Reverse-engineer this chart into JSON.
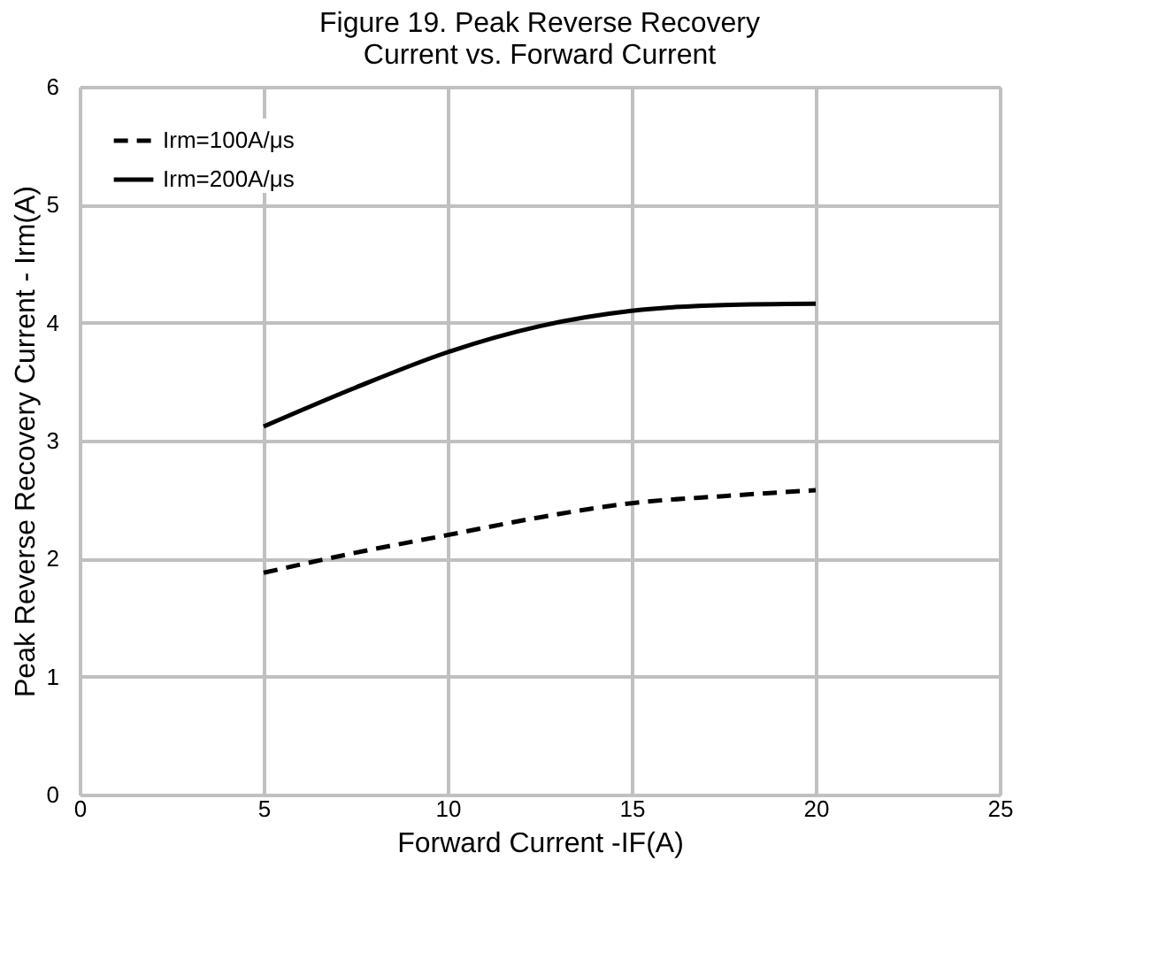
{
  "chart_data": {
    "type": "line",
    "title": [
      "Figure 19. Peak Reverse Recovery",
      "Current vs. Forward Current"
    ],
    "xlabel": "Forward Current -IF(A)",
    "ylabel": "Peak Reverse Recovery Current - Irm(A)",
    "x": [
      5,
      7.5,
      10,
      12.5,
      15,
      17.5,
      20
    ],
    "series": [
      {
        "name": "Irm=100A/μs",
        "color": "#000000",
        "line_style": "dashed",
        "values": [
          1.88,
          2.05,
          2.2,
          2.35,
          2.47,
          2.53,
          2.58
        ]
      },
      {
        "name": "Irm=200A/μs",
        "color": "#000000",
        "line_style": "solid",
        "values": [
          3.12,
          3.45,
          3.75,
          3.97,
          4.1,
          4.15,
          4.16
        ]
      }
    ],
    "xlim": [
      0,
      25
    ],
    "xticks": [
      0,
      5,
      10,
      15,
      20,
      25
    ],
    "ylim": [
      0,
      6
    ],
    "yticks": [
      0,
      1,
      2,
      3,
      4,
      5,
      6
    ],
    "grid": true,
    "legend": "top left",
    "marker": "none"
  }
}
